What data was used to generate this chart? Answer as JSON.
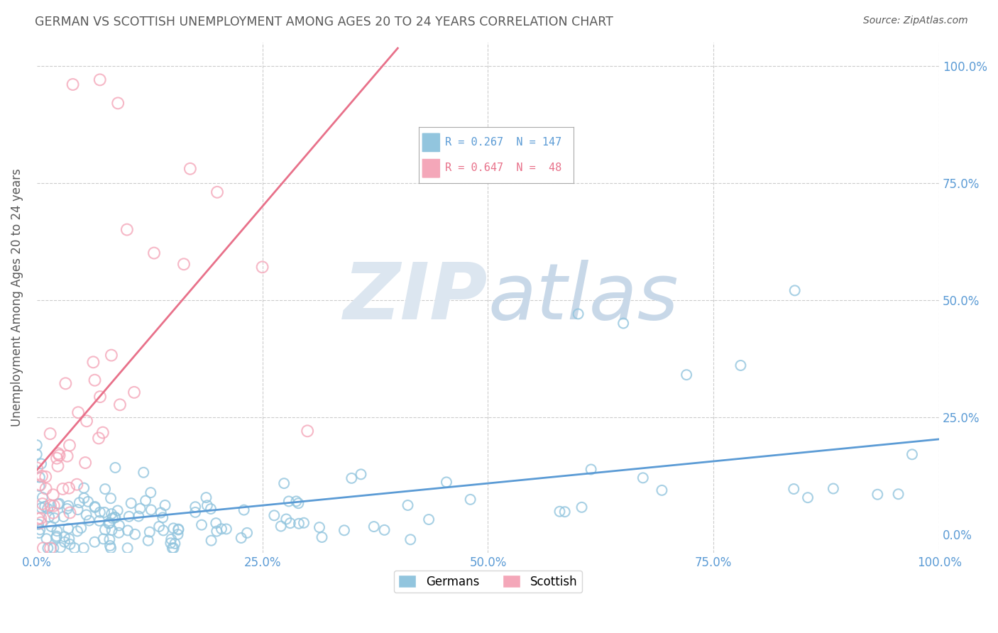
{
  "title": "GERMAN VS SCOTTISH UNEMPLOYMENT AMONG AGES 20 TO 24 YEARS CORRELATION CHART",
  "source": "Source: ZipAtlas.com",
  "ylabel": "Unemployment Among Ages 20 to 24 years",
  "xlim": [
    0.0,
    1.0
  ],
  "ylim": [
    -0.04,
    1.05
  ],
  "xticks": [
    0.0,
    0.25,
    0.5,
    0.75,
    1.0
  ],
  "yticks": [
    0.0,
    0.25,
    0.5,
    0.75,
    1.0
  ],
  "xticklabels": [
    "0.0%",
    "25.0%",
    "50.0%",
    "75.0%",
    "100.0%"
  ],
  "yticklabels": [
    "0.0%",
    "25.0%",
    "50.0%",
    "75.0%",
    "100.0%"
  ],
  "german_R": 0.267,
  "german_N": 147,
  "scottish_R": 0.647,
  "scottish_N": 48,
  "german_color": "#92c5de",
  "scottish_color": "#f4a7b9",
  "german_line_color": "#5b9bd5",
  "scottish_line_color": "#e8718a",
  "watermark": "ZIPatlas",
  "watermark_color": "#dce6f0",
  "background_color": "#ffffff",
  "grid_color": "#cccccc",
  "title_color": "#595959",
  "axis_label_color": "#595959",
  "tick_label_color": "#5b9bd5",
  "legend_text_german": "R = 0.267  N = 147",
  "legend_text_scottish": "R = 0.647  N =  48"
}
